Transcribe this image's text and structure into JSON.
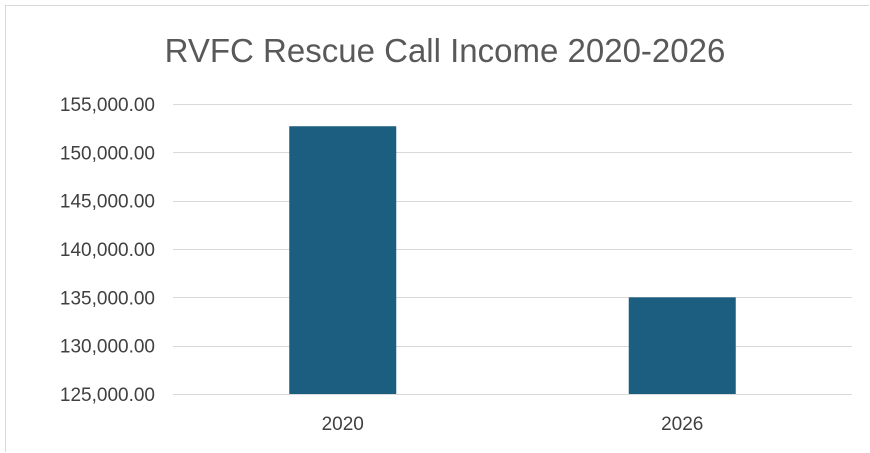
{
  "chart_data": {
    "type": "bar",
    "title": "RVFC Rescue Call Income 2020-2026",
    "xlabel": "",
    "ylabel": "",
    "categories": [
      "2020",
      "2026"
    ],
    "series": [
      {
        "values": [
          152700,
          135000
        ],
        "color": "#1b5e80"
      }
    ],
    "ylim": [
      125000,
      155000
    ],
    "ytick_values": [
      125000,
      130000,
      135000,
      140000,
      145000,
      150000,
      155000
    ],
    "ytick_labels": [
      "125,000.00",
      "130,000.00",
      "135,000.00",
      "140,000.00",
      "145,000.00",
      "150,000.00",
      "155,000.00"
    ],
    "grid": true,
    "gridline_color": "#d9d9d9",
    "legend": "none"
  }
}
